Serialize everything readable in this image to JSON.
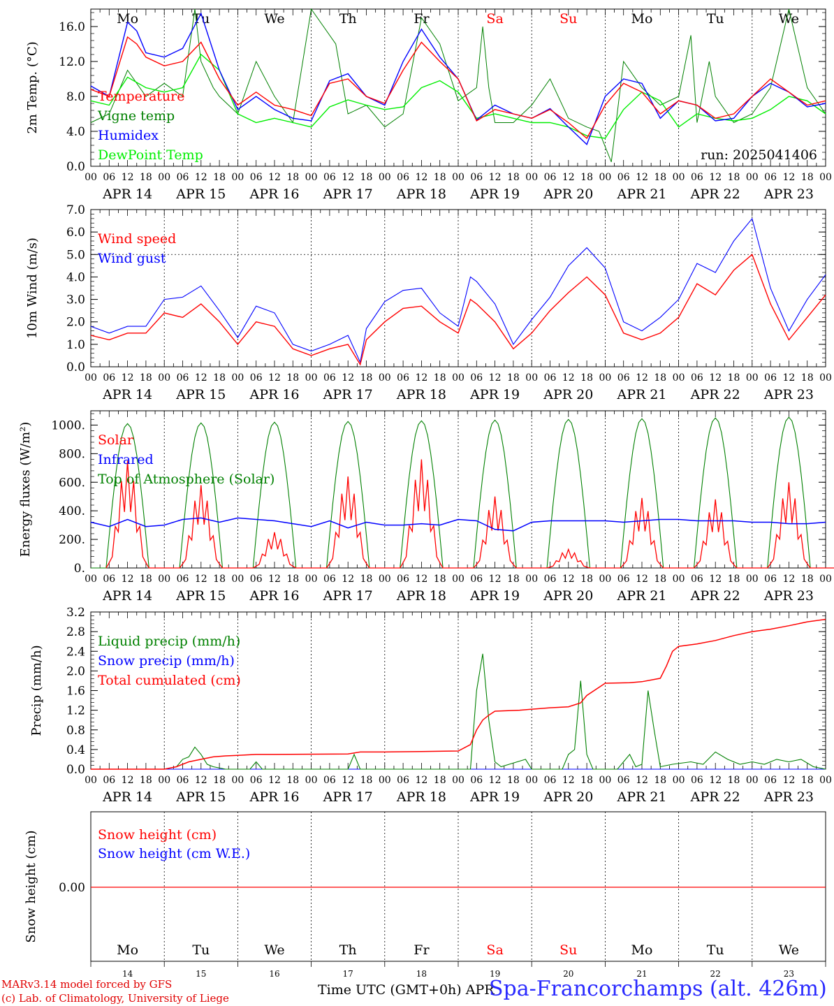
{
  "chart_data": [
    {
      "type": "line",
      "title": "",
      "ylabel": "2m Temp. (°C)",
      "ylim": [
        0,
        18
      ],
      "yticks": [
        "0.0",
        "4.0",
        "8.0",
        "12.0",
        "16.0"
      ],
      "ytick_values": [
        0,
        4,
        8,
        12,
        16
      ],
      "weekdays": [
        "Mo",
        "Tu",
        "We",
        "Th",
        "Fr",
        "Sa",
        "Su",
        "Mo",
        "Tu",
        "We"
      ],
      "weekday_colors": [
        "#000000",
        "#000000",
        "#000000",
        "#000000",
        "#000000",
        "#ff0000",
        "#ff0000",
        "#000000",
        "#000000",
        "#000000"
      ],
      "hour_ticks": [
        "00",
        "06",
        "12",
        "18"
      ],
      "date_labels": [
        "APR 14",
        "APR 15",
        "APR 16",
        "APR 17",
        "APR 18",
        "APR 19",
        "APR 20",
        "APR 21",
        "APR 22",
        "APR 23"
      ],
      "annotation": "run: 2025041406",
      "x_unit": "hours since APR 14 00 UTC",
      "series": [
        {
          "name": "Temperature",
          "color": "#ff0000",
          "x": [
            0,
            6,
            12,
            15,
            18,
            24,
            30,
            36,
            42,
            48,
            54,
            60,
            66,
            72,
            78,
            84,
            90,
            96,
            102,
            108,
            114,
            120,
            126,
            132,
            138,
            144,
            150,
            156,
            162,
            168,
            174,
            180,
            186,
            192,
            198,
            204,
            210,
            216,
            222,
            228,
            234,
            240
          ],
          "values": [
            8.8,
            8,
            14.8,
            14,
            12.5,
            11.5,
            12,
            14.2,
            10,
            7,
            8.5,
            7,
            6.5,
            5.8,
            9.5,
            10,
            8,
            7.2,
            11,
            14.2,
            12,
            10,
            5.2,
            6.5,
            6,
            5.5,
            6.5,
            5,
            3.2,
            7,
            9.5,
            8.5,
            6,
            7.5,
            7,
            5.5,
            6,
            8,
            10,
            8.5,
            7,
            7.5
          ]
        },
        {
          "name": "Vigne temp",
          "color": "#008000",
          "x": [
            0,
            6,
            12,
            18,
            24,
            30,
            34,
            36,
            40,
            42,
            48,
            54,
            60,
            66,
            72,
            80,
            84,
            90,
            96,
            102,
            108,
            114,
            120,
            126,
            128,
            130,
            132,
            138,
            144,
            150,
            156,
            162,
            166,
            170,
            174,
            180,
            186,
            192,
            196,
            198,
            202,
            204,
            210,
            216,
            222,
            228,
            234,
            240
          ],
          "values": [
            5,
            6,
            11,
            8,
            9.5,
            8,
            18,
            12,
            9,
            8,
            6,
            12,
            8,
            5,
            18,
            14,
            6,
            7,
            4.5,
            6,
            17,
            14,
            7.5,
            9,
            16,
            9,
            5,
            5,
            7,
            10,
            5.5,
            4.5,
            4,
            0.5,
            12,
            9,
            7,
            8,
            15,
            5,
            12,
            8,
            5,
            6,
            9,
            18,
            9,
            6
          ]
        },
        {
          "name": "Humidex",
          "color": "#0000ff",
          "x": [
            0,
            6,
            12,
            15,
            18,
            24,
            30,
            36,
            42,
            48,
            54,
            60,
            66,
            72,
            78,
            84,
            90,
            96,
            102,
            108,
            114,
            120,
            126,
            132,
            138,
            144,
            150,
            156,
            162,
            168,
            174,
            180,
            186,
            192,
            198,
            204,
            210,
            216,
            222,
            228,
            234,
            240
          ],
          "values": [
            9.2,
            8,
            16.5,
            15.5,
            13,
            12.5,
            13.5,
            17.5,
            11,
            6.5,
            8,
            6.5,
            5.5,
            5.2,
            9.8,
            10.6,
            8,
            7,
            12,
            15.7,
            12.5,
            10,
            5.3,
            7,
            6,
            5.5,
            6.6,
            4.5,
            2.5,
            8,
            10,
            9.5,
            5.5,
            7.5,
            7,
            5.2,
            5.5,
            8,
            9.5,
            8.5,
            6.8,
            7.2
          ]
        },
        {
          "name": "DewPoint Temp",
          "color": "#00ee00",
          "x": [
            0,
            6,
            12,
            18,
            24,
            30,
            36,
            42,
            48,
            54,
            60,
            66,
            72,
            78,
            84,
            90,
            96,
            102,
            108,
            114,
            120,
            126,
            132,
            138,
            144,
            150,
            156,
            162,
            168,
            174,
            180,
            186,
            192,
            198,
            204,
            210,
            216,
            222,
            228,
            234,
            240
          ],
          "values": [
            7.5,
            7,
            10.2,
            9,
            8.5,
            9,
            12.8,
            11,
            6,
            5,
            5.5,
            5,
            4.5,
            6.8,
            7.6,
            7,
            6.5,
            6.8,
            9,
            9.8,
            8.5,
            5.5,
            6,
            5.5,
            5,
            5,
            4.5,
            3.5,
            3.2,
            6.5,
            8.5,
            7.5,
            4.5,
            6,
            5.5,
            5.2,
            5.5,
            6.5,
            8,
            7.5,
            6
          ]
        }
      ]
    },
    {
      "type": "line",
      "title": "",
      "ylabel": "10m Wind (m/s)",
      "ylim": [
        0,
        7
      ],
      "yticks": [
        "0.0",
        "1.0",
        "2.0",
        "3.0",
        "4.0",
        "5.0",
        "6.0",
        "7.0"
      ],
      "ytick_values": [
        0,
        1,
        2,
        3,
        4,
        5,
        6,
        7
      ],
      "hour_ticks": [
        "00",
        "06",
        "12",
        "18"
      ],
      "date_labels": [
        "APR 14",
        "APR 15",
        "APR 16",
        "APR 17",
        "APR 18",
        "APR 19",
        "APR 20",
        "APR 21",
        "APR 22",
        "APR 23"
      ],
      "ref_line": 5.0,
      "series": [
        {
          "name": "Wind speed",
          "color": "#ff0000",
          "x": [
            0,
            6,
            12,
            18,
            24,
            30,
            36,
            42,
            48,
            54,
            60,
            66,
            72,
            78,
            84,
            88,
            90,
            96,
            102,
            108,
            114,
            120,
            124,
            126,
            132,
            138,
            144,
            150,
            156,
            162,
            168,
            174,
            180,
            186,
            192,
            198,
            204,
            210,
            216,
            222,
            228,
            234,
            240
          ],
          "values": [
            1.4,
            1.2,
            1.5,
            1.5,
            2.4,
            2.2,
            2.8,
            2.0,
            1.0,
            2.0,
            1.8,
            0.8,
            0.5,
            0.8,
            1.0,
            0.1,
            1.2,
            2.0,
            2.6,
            2.7,
            2.0,
            1.5,
            3.0,
            2.8,
            2.0,
            0.8,
            1.5,
            2.5,
            3.3,
            4.0,
            3.2,
            1.5,
            1.2,
            1.5,
            2.2,
            3.7,
            3.2,
            4.3,
            5.0,
            2.8,
            1.2,
            2.2,
            3.2
          ]
        },
        {
          "name": "Wind gust",
          "color": "#0000ff",
          "x": [
            0,
            6,
            12,
            18,
            24,
            30,
            36,
            42,
            48,
            54,
            60,
            66,
            72,
            78,
            84,
            88,
            90,
            96,
            102,
            108,
            114,
            120,
            124,
            126,
            132,
            138,
            144,
            150,
            156,
            162,
            168,
            174,
            180,
            186,
            192,
            198,
            204,
            210,
            216,
            222,
            228,
            234,
            240
          ],
          "values": [
            1.8,
            1.5,
            1.8,
            1.8,
            3.0,
            3.1,
            3.6,
            2.5,
            1.3,
            2.7,
            2.4,
            1.0,
            0.7,
            1.0,
            1.4,
            0.2,
            1.7,
            2.9,
            3.4,
            3.5,
            2.4,
            1.8,
            4.0,
            3.8,
            2.8,
            1.0,
            2.1,
            3.1,
            4.5,
            5.3,
            4.4,
            2.0,
            1.6,
            2.2,
            3.0,
            4.6,
            4.2,
            5.6,
            6.6,
            3.5,
            1.6,
            3.0,
            4.1
          ]
        }
      ]
    },
    {
      "type": "line",
      "title": "",
      "ylabel": "Energy fluxes (W/m²)",
      "ylim": [
        0,
        1100
      ],
      "yticks": [
        "0.",
        "200.",
        "400.",
        "600.",
        "800.",
        "1000."
      ],
      "ytick_values": [
        0,
        200,
        400,
        600,
        800,
        1000
      ],
      "hour_ticks": [
        "00",
        "06",
        "12",
        "18"
      ],
      "date_labels": [
        "APR 14",
        "APR 15",
        "APR 16",
        "APR 17",
        "APR 18",
        "APR 19",
        "APR 20",
        "APR 21",
        "APR 22",
        "APR 23"
      ],
      "toa_peaks": [
        1010,
        1015,
        1020,
        1025,
        1030,
        1035,
        1040,
        1045,
        1050,
        1055
      ],
      "solar_peaks": [
        750,
        580,
        250,
        640,
        760,
        500,
        130,
        490,
        480,
        600
      ],
      "series": [
        {
          "name": "Solar",
          "color": "#ff0000"
        },
        {
          "name": "Infrared",
          "color": "#0000ff",
          "x": [
            0,
            6,
            12,
            18,
            24,
            30,
            36,
            42,
            48,
            54,
            60,
            66,
            72,
            78,
            84,
            90,
            96,
            102,
            108,
            114,
            120,
            126,
            132,
            138,
            144,
            150,
            156,
            162,
            168,
            174,
            180,
            186,
            192,
            198,
            204,
            210,
            216,
            222,
            228,
            234,
            240
          ],
          "values": [
            320,
            290,
            340,
            290,
            300,
            340,
            350,
            320,
            350,
            340,
            330,
            310,
            290,
            330,
            280,
            320,
            300,
            300,
            310,
            300,
            340,
            330,
            270,
            260,
            320,
            330,
            330,
            330,
            330,
            320,
            330,
            340,
            340,
            330,
            330,
            330,
            320,
            320,
            310,
            310,
            320
          ]
        },
        {
          "name": "Top of Atmosphere (Solar)",
          "color": "#008000"
        }
      ]
    },
    {
      "type": "line",
      "title": "",
      "ylabel": "Precip (mm/h)",
      "ylim": [
        0,
        3.2
      ],
      "yticks": [
        "0.0",
        "0.4",
        "0.8",
        "1.2",
        "1.6",
        "2.0",
        "2.4",
        "2.8",
        "3.2"
      ],
      "ytick_values": [
        0,
        0.4,
        0.8,
        1.2,
        1.6,
        2.0,
        2.4,
        2.8,
        3.2
      ],
      "hour_ticks": [
        "00",
        "06",
        "12",
        "18"
      ],
      "date_labels": [
        "APR 14",
        "APR 15",
        "APR 16",
        "APR 17",
        "APR 18",
        "APR 19",
        "APR 20",
        "APR 21",
        "APR 22",
        "APR 23"
      ],
      "series": [
        {
          "name": "Liquid precip (mm/h)",
          "color": "#008000",
          "x": [
            0,
            24,
            28,
            30,
            32,
            34,
            36,
            38,
            40,
            44,
            48,
            52,
            54,
            56,
            60,
            84,
            86,
            88,
            90,
            124,
            126,
            128,
            130,
            132,
            134,
            142,
            144,
            154,
            156,
            158,
            160,
            162,
            164,
            166,
            172,
            176,
            178,
            180,
            182,
            184,
            186,
            190,
            196,
            200,
            204,
            208,
            212,
            216,
            220,
            224,
            228,
            232,
            236,
            240
          ],
          "values": [
            0,
            0,
            0.05,
            0.2,
            0.25,
            0.45,
            0.3,
            0.1,
            0.05,
            0,
            0,
            0,
            0.15,
            0,
            0,
            0,
            0.3,
            0,
            0,
            0,
            1.6,
            2.35,
            1.0,
            0.15,
            0.05,
            0.2,
            0,
            0,
            0.3,
            0.4,
            1.8,
            0.3,
            0,
            0,
            0,
            0.3,
            0.05,
            0.1,
            1.6,
            0.8,
            0.05,
            0.1,
            0.15,
            0.1,
            0.35,
            0.2,
            0.1,
            0.15,
            0.1,
            0.2,
            0.15,
            0.2,
            0.05,
            0
          ]
        },
        {
          "name": "Snow precip (mm/h)",
          "color": "#0000ff",
          "x": [
            0,
            240
          ],
          "values": [
            0,
            0
          ]
        },
        {
          "name": "Total cumulated (cm)",
          "color": "#ff0000",
          "x": [
            0,
            24,
            28,
            32,
            36,
            40,
            44,
            48,
            54,
            60,
            84,
            88,
            96,
            108,
            120,
            124,
            126,
            128,
            130,
            132,
            140,
            150,
            156,
            160,
            162,
            168,
            176,
            180,
            186,
            188,
            190,
            192,
            198,
            204,
            210,
            216,
            222,
            228,
            234,
            240
          ],
          "values": [
            0,
            0,
            0.05,
            0.15,
            0.2,
            0.25,
            0.27,
            0.28,
            0.3,
            0.3,
            0.31,
            0.35,
            0.35,
            0.36,
            0.37,
            0.5,
            0.8,
            1.0,
            1.1,
            1.18,
            1.2,
            1.25,
            1.27,
            1.35,
            1.5,
            1.75,
            1.76,
            1.78,
            1.85,
            2.1,
            2.4,
            2.5,
            2.55,
            2.62,
            2.72,
            2.8,
            2.85,
            2.92,
            3.0,
            3.05
          ]
        }
      ]
    },
    {
      "type": "line",
      "title": "",
      "ylabel": "Snow height (cm)",
      "yticks": [
        "0.00"
      ],
      "weekdays": [
        "Mo",
        "Tu",
        "We",
        "Th",
        "Fr",
        "Sa",
        "Su",
        "Mo",
        "Tu",
        "We"
      ],
      "day_numbers": [
        "14",
        "15",
        "16",
        "17",
        "18",
        "19",
        "20",
        "21",
        "22",
        "23"
      ],
      "series": [
        {
          "name": "Snow height (cm)",
          "color": "#ff0000",
          "x": [
            0,
            240
          ],
          "values": [
            0,
            0
          ]
        },
        {
          "name": "Snow height (cm W.E.)",
          "color": "#0000ff",
          "x": [
            0,
            240
          ],
          "values": [
            0,
            0
          ]
        }
      ]
    }
  ],
  "footer": {
    "credit_line1": "MARv3.14 model forced by GFS",
    "credit_line2": "(c) Lab. of Climatology, University of Liege",
    "time_axis_label": "Time UTC (GMT+0h) APR",
    "station": "Spa-Francorchamps (alt. 426m)"
  }
}
